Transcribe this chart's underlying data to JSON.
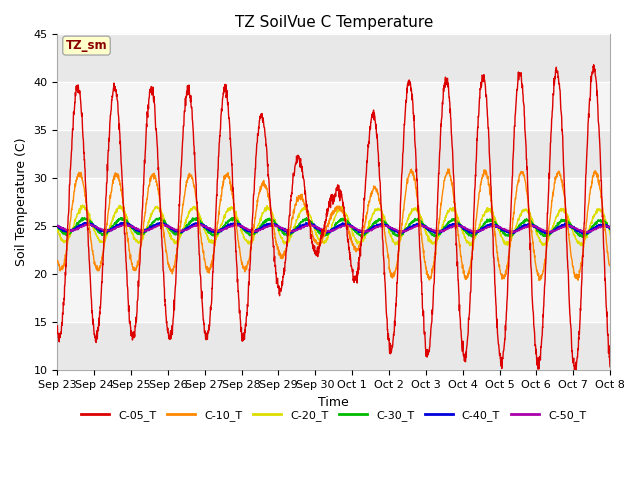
{
  "title": "TZ SoilVue C Temperature",
  "xlabel": "Time",
  "ylabel": "Soil Temperature (C)",
  "ylim": [
    10,
    45
  ],
  "annotation_text": "TZ_sm",
  "annotation_color": "#8B0000",
  "annotation_bg": "#ffffcc",
  "bg_color": "#ffffff",
  "plot_bg_light": "#f0f0f0",
  "plot_bg_dark": "#e0e0e0",
  "series_colors": {
    "C-05_T": "#dd0000",
    "C-10_T": "#ff8800",
    "C-20_T": "#dddd00",
    "C-30_T": "#00bb00",
    "C-40_T": "#0000dd",
    "C-50_T": "#aa00aa"
  },
  "tick_labels": [
    "Sep 23",
    "Sep 24",
    "Sep 25",
    "Sep 26",
    "Sep 27",
    "Sep 28",
    "Sep 29",
    "Sep 30",
    "Oct 1",
    "Oct 2",
    "Oct 3",
    "Oct 4",
    "Oct 5",
    "Oct 6",
    "Oct 7",
    "Oct 8"
  ],
  "n_days": 15,
  "pts_per_day": 144,
  "band_yticks": [
    10,
    15,
    20,
    25,
    30,
    35,
    40,
    45
  ]
}
